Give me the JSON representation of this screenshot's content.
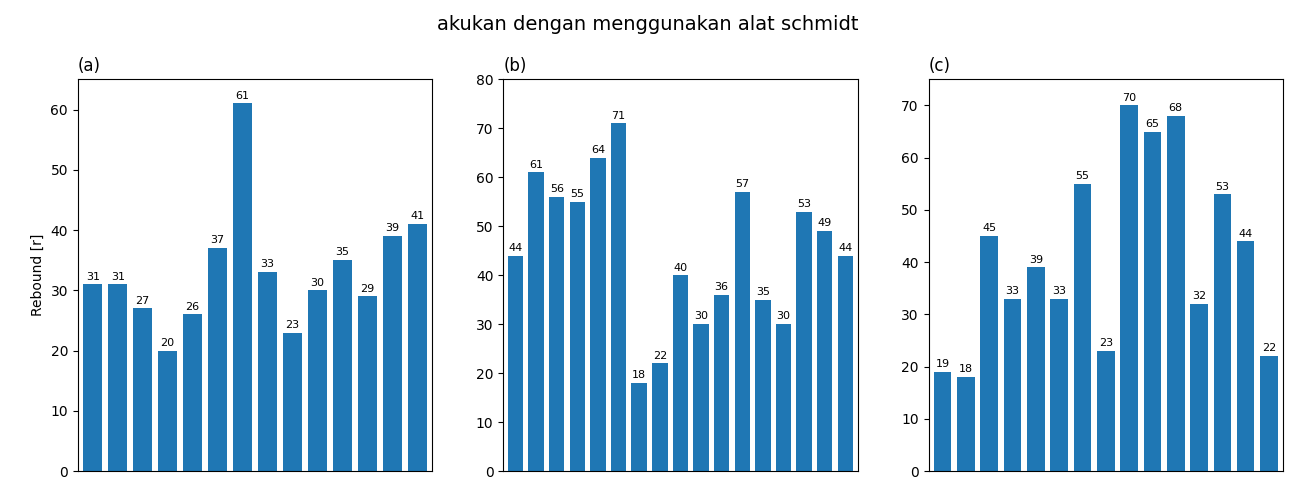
{
  "title": "akukan dengan menggunakan alat schmidt",
  "chart_data": [
    {
      "type": "bar",
      "title": "(a)",
      "y_label": "Rebound [r]",
      "categories": [
        null,
        null,
        null,
        null,
        null,
        null,
        null,
        null,
        null,
        null,
        null,
        null,
        null,
        null
      ],
      "values": [
        31,
        31,
        27,
        20,
        26,
        37,
        61,
        33,
        23,
        30,
        35,
        29,
        39,
        41
      ],
      "ylim": [
        0,
        65
      ],
      "yticks": [
        0,
        10,
        20,
        30,
        40,
        50,
        60
      ],
      "data_labels": true,
      "tick_labels": "y"
    },
    {
      "type": "bar",
      "title": "(b)",
      "categories": [
        null,
        null,
        null,
        null,
        null,
        null,
        null,
        null,
        null,
        null,
        null,
        null,
        null,
        null,
        null,
        null,
        null
      ],
      "values": [
        44,
        61,
        56,
        55,
        64,
        71,
        18,
        22,
        40,
        30,
        36,
        57,
        35,
        30,
        53,
        49,
        44
      ],
      "ylim": [
        0,
        80
      ],
      "yticks": [
        0,
        10,
        20,
        30,
        40,
        50,
        60,
        70,
        80
      ],
      "data_labels": true,
      "tick_labels": "y"
    },
    {
      "type": "bar",
      "title": "(c)",
      "categories": [
        null,
        null,
        null,
        null,
        null,
        null,
        null,
        null,
        null,
        null,
        null,
        null,
        null,
        null,
        null
      ],
      "values": [
        19,
        18,
        45,
        33,
        39,
        33,
        55,
        23,
        70,
        65,
        68,
        32,
        53,
        44,
        22
      ],
      "ylim": [
        0,
        75
      ],
      "yticks": [
        0,
        10,
        20,
        30,
        40,
        50,
        60,
        70
      ],
      "data_labels": true,
      "tick_labels": "y"
    }
  ]
}
